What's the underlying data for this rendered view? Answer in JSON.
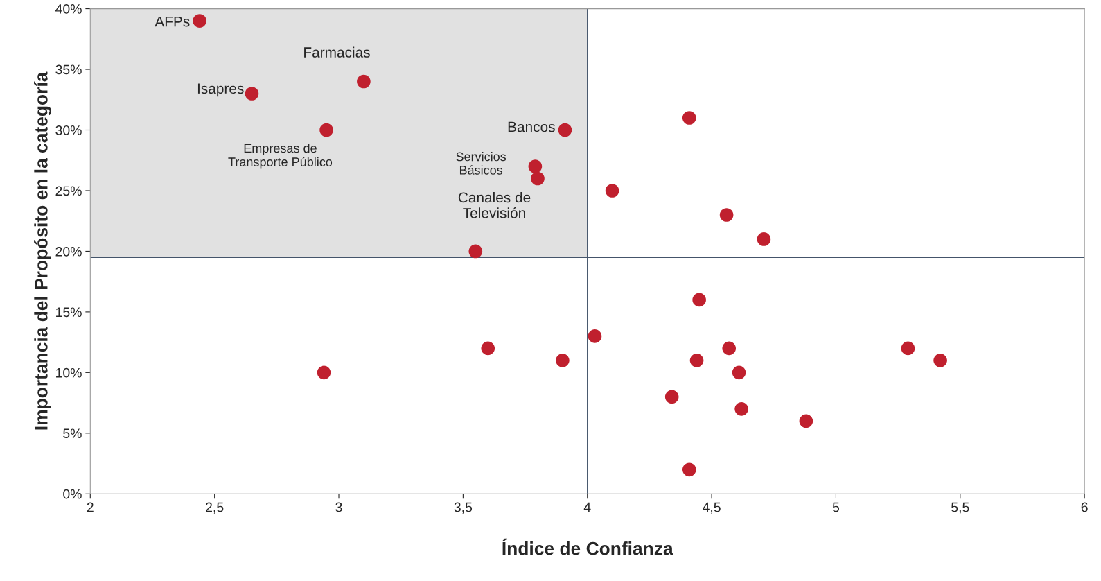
{
  "chart_data": {
    "type": "scatter",
    "xlabel": "Índice de Confianza",
    "ylabel": "Importancia del Propósito en la categoría",
    "series": [
      {
        "color": "#c0202e",
        "x": [
          2.44,
          2.65,
          3.1,
          2.95,
          3.91,
          3.79,
          3.8,
          3.55,
          4.41,
          4.1,
          4.56,
          4.71,
          4.45,
          4.03,
          3.6,
          3.9,
          2.94,
          4.57,
          4.44,
          4.61,
          4.34,
          4.62,
          4.88,
          4.41,
          5.29,
          5.42
        ],
        "values": [
          39,
          33,
          34,
          30,
          30,
          27,
          26,
          20,
          31,
          25,
          23,
          21,
          16,
          13,
          12,
          11,
          10,
          12,
          11,
          10,
          8,
          7,
          6,
          2,
          12,
          11
        ]
      }
    ],
    "marker": "circle",
    "annotations": [
      {
        "text": "AFPs",
        "x": 2.44,
        "y": 39
      },
      {
        "text": "Isapres",
        "x": 2.65,
        "y": 33
      },
      {
        "text": "Farmacias",
        "x": 3.1,
        "y": 34
      },
      {
        "text": "Empresas de\nTransporte Público",
        "x": 2.95,
        "y": 30
      },
      {
        "text": "Bancos",
        "x": 3.91,
        "y": 30
      },
      {
        "text": "Servicios\nBásicos",
        "x": 3.79,
        "y": 27
      },
      {
        "text": "Canales de\nTelevisión",
        "x": 3.8,
        "y": 26
      }
    ],
    "ref_lines": [
      {
        "axis": "x",
        "value": 4.0,
        "color": "#44546a"
      },
      {
        "axis": "y",
        "value": 19.5,
        "color": "#44546a"
      }
    ],
    "bands": [
      {
        "axis": "x",
        "from": 2,
        "to": 4,
        "color": "#e1e1e1"
      }
    ],
    "xlim": [
      2,
      6
    ],
    "xticks": [
      2,
      {
        "value": 2.5,
        "label": "2,5"
      },
      3,
      {
        "value": 3.5,
        "label": "3,5"
      },
      4,
      {
        "value": 4.5,
        "label": "4,5"
      },
      5,
      {
        "value": 5.5,
        "label": "5,5"
      },
      6
    ],
    "ylim": [
      0,
      40
    ],
    "yticks": [
      {
        "value": 0,
        "label": "0%"
      },
      {
        "value": 5,
        "label": "5%"
      },
      {
        "value": 10,
        "label": "10%"
      },
      {
        "value": 15,
        "label": "15%"
      },
      {
        "value": 20,
        "label": "20%"
      },
      {
        "value": 25,
        "label": "25%"
      },
      {
        "value": 30,
        "label": "30%"
      },
      {
        "value": 35,
        "label": "35%"
      },
      {
        "value": 40,
        "label": "40%"
      }
    ],
    "grid": false,
    "legend": false
  }
}
